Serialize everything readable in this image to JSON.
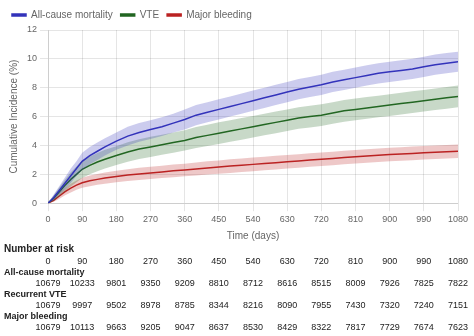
{
  "chart_data": {
    "type": "line",
    "xlabel": "Time (days)",
    "ylabel": "Cumulative Incidence (%)",
    "xlim": [
      0,
      1080
    ],
    "ylim": [
      0,
      12
    ],
    "xticks": [
      0,
      90,
      180,
      270,
      360,
      450,
      540,
      630,
      720,
      810,
      900,
      990,
      1080
    ],
    "yticks": [
      0,
      2,
      4,
      6,
      8,
      10,
      12
    ],
    "grid": true,
    "legend": "upper left",
    "x": [
      0,
      15,
      30,
      45,
      60,
      75,
      90,
      110,
      130,
      150,
      180,
      210,
      240,
      270,
      300,
      330,
      360,
      390,
      420,
      450,
      480,
      510,
      540,
      570,
      600,
      630,
      660,
      690,
      720,
      750,
      780,
      810,
      840,
      870,
      900,
      930,
      960,
      990,
      1020,
      1050,
      1080
    ],
    "series": [
      {
        "name": "All-cause mortality",
        "color": "#3333bb",
        "values": [
          0,
          0.4,
          0.9,
          1.4,
          1.9,
          2.4,
          2.9,
          3.3,
          3.6,
          3.9,
          4.3,
          4.65,
          4.9,
          5.1,
          5.3,
          5.55,
          5.8,
          6.1,
          6.3,
          6.5,
          6.7,
          6.9,
          7.1,
          7.3,
          7.5,
          7.7,
          7.9,
          8.05,
          8.2,
          8.4,
          8.55,
          8.7,
          8.85,
          9.0,
          9.1,
          9.2,
          9.3,
          9.45,
          9.6,
          9.7,
          9.8
        ],
        "lo": [
          0,
          0.2,
          0.6,
          1.0,
          1.4,
          1.9,
          2.3,
          2.7,
          3.0,
          3.3,
          3.7,
          4.0,
          4.25,
          4.45,
          4.65,
          4.9,
          5.1,
          5.4,
          5.6,
          5.8,
          6.0,
          6.2,
          6.4,
          6.6,
          6.8,
          7.0,
          7.2,
          7.35,
          7.5,
          7.7,
          7.85,
          8.0,
          8.15,
          8.3,
          8.4,
          8.5,
          8.6,
          8.75,
          8.9,
          9.0,
          9.1
        ],
        "hi": [
          0,
          0.6,
          1.2,
          1.8,
          2.4,
          2.9,
          3.5,
          3.9,
          4.2,
          4.5,
          4.9,
          5.3,
          5.55,
          5.75,
          5.95,
          6.2,
          6.5,
          6.8,
          7.0,
          7.2,
          7.4,
          7.6,
          7.8,
          8.0,
          8.2,
          8.4,
          8.6,
          8.75,
          8.9,
          9.1,
          9.25,
          9.4,
          9.55,
          9.7,
          9.8,
          9.9,
          10.0,
          10.15,
          10.3,
          10.4,
          10.5
        ]
      },
      {
        "name": "VTE",
        "color": "#226622",
        "values": [
          0,
          0.35,
          0.8,
          1.25,
          1.65,
          2.0,
          2.35,
          2.62,
          2.85,
          3.05,
          3.3,
          3.55,
          3.75,
          3.9,
          4.05,
          4.2,
          4.35,
          4.55,
          4.7,
          4.85,
          5.0,
          5.15,
          5.3,
          5.45,
          5.6,
          5.75,
          5.9,
          6.0,
          6.1,
          6.25,
          6.4,
          6.5,
          6.6,
          6.7,
          6.8,
          6.9,
          7.0,
          7.1,
          7.2,
          7.3,
          7.4
        ],
        "lo": [
          0,
          0.15,
          0.5,
          0.85,
          1.15,
          1.45,
          1.75,
          2.0,
          2.22,
          2.4,
          2.65,
          2.88,
          3.07,
          3.2,
          3.35,
          3.5,
          3.65,
          3.82,
          3.97,
          4.1,
          4.25,
          4.4,
          4.55,
          4.7,
          4.85,
          5.0,
          5.15,
          5.25,
          5.35,
          5.5,
          5.65,
          5.75,
          5.85,
          5.95,
          6.05,
          6.15,
          6.25,
          6.35,
          6.45,
          6.55,
          6.65
        ],
        "hi": [
          0,
          0.55,
          1.1,
          1.65,
          2.15,
          2.55,
          2.95,
          3.24,
          3.48,
          3.7,
          3.95,
          4.22,
          4.43,
          4.6,
          4.75,
          4.9,
          5.05,
          5.28,
          5.43,
          5.6,
          5.75,
          5.9,
          6.05,
          6.2,
          6.35,
          6.5,
          6.65,
          6.75,
          6.85,
          7.0,
          7.15,
          7.25,
          7.35,
          7.45,
          7.55,
          7.65,
          7.75,
          7.85,
          7.95,
          8.05,
          8.15
        ]
      },
      {
        "name": "Major bleeding",
        "color": "#bb2222",
        "values": [
          0,
          0.2,
          0.5,
          0.8,
          1.05,
          1.25,
          1.42,
          1.55,
          1.65,
          1.74,
          1.85,
          1.95,
          2.03,
          2.1,
          2.17,
          2.24,
          2.3,
          2.37,
          2.44,
          2.5,
          2.57,
          2.63,
          2.69,
          2.75,
          2.81,
          2.87,
          2.93,
          2.99,
          3.04,
          3.1,
          3.16,
          3.22,
          3.27,
          3.32,
          3.37,
          3.41,
          3.45,
          3.49,
          3.53,
          3.57,
          3.6
        ],
        "lo": [
          0,
          0.1,
          0.3,
          0.55,
          0.75,
          0.93,
          1.07,
          1.18,
          1.27,
          1.35,
          1.45,
          1.54,
          1.61,
          1.67,
          1.74,
          1.8,
          1.86,
          1.92,
          1.98,
          2.04,
          2.1,
          2.16,
          2.22,
          2.28,
          2.34,
          2.4,
          2.46,
          2.52,
          2.57,
          2.63,
          2.69,
          2.75,
          2.8,
          2.85,
          2.9,
          2.94,
          2.98,
          3.02,
          3.06,
          3.1,
          3.13
        ],
        "hi": [
          0,
          0.3,
          0.7,
          1.05,
          1.35,
          1.57,
          1.77,
          1.92,
          2.03,
          2.13,
          2.25,
          2.36,
          2.45,
          2.53,
          2.6,
          2.68,
          2.74,
          2.82,
          2.9,
          2.96,
          3.04,
          3.1,
          3.16,
          3.22,
          3.28,
          3.34,
          3.4,
          3.46,
          3.51,
          3.57,
          3.63,
          3.69,
          3.74,
          3.79,
          3.84,
          3.88,
          3.92,
          3.96,
          4.0,
          4.04,
          4.07
        ]
      }
    ],
    "risk_table": {
      "title": "Number at risk",
      "times": [
        0,
        90,
        180,
        270,
        360,
        450,
        540,
        630,
        720,
        810,
        900,
        990,
        1080
      ],
      "rows": [
        {
          "name": "All-cause mortality",
          "values": [
            10679,
            10233,
            9801,
            9350,
            9209,
            8810,
            8712,
            8616,
            8515,
            8009,
            7926,
            7825,
            7822
          ]
        },
        {
          "name": "Recurrent VTE",
          "values": [
            10679,
            9997,
            9502,
            8978,
            8785,
            8344,
            8216,
            8090,
            7955,
            7430,
            7320,
            7240,
            7151
          ]
        },
        {
          "name": "Major bleeding",
          "values": [
            10679,
            10113,
            9663,
            9205,
            9047,
            8637,
            8530,
            8429,
            8322,
            7817,
            7729,
            7674,
            7623
          ]
        }
      ]
    }
  }
}
